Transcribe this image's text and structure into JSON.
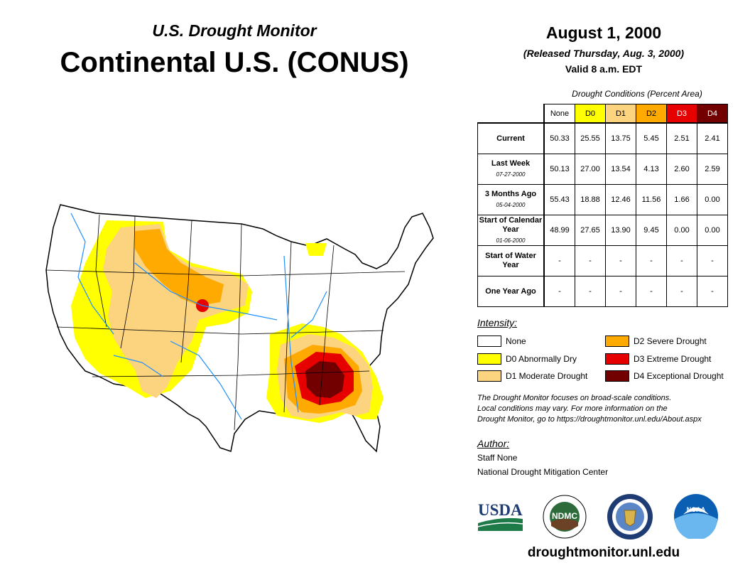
{
  "header": {
    "subtitle": "U.S. Drought Monitor",
    "title": "Continental U.S. (CONUS)",
    "date": "August 1, 2000",
    "released": "(Released Thursday, Aug. 3, 2000)",
    "valid": "Valid 8 a.m. EDT"
  },
  "conditions": {
    "caption": "Drought Conditions (Percent Area)",
    "columns": [
      {
        "label": "None",
        "color": "#ffffff"
      },
      {
        "label": "D0",
        "color": "#ffff00"
      },
      {
        "label": "D1",
        "color": "#fcd37f"
      },
      {
        "label": "D2",
        "color": "#ffaa00"
      },
      {
        "label": "D3",
        "color": "#e60000"
      },
      {
        "label": "D4",
        "color": "#730000"
      }
    ],
    "rows": [
      {
        "label": "Current",
        "date": "",
        "values": [
          "50.33",
          "25.55",
          "13.75",
          "5.45",
          "2.51",
          "2.41"
        ]
      },
      {
        "label": "Last Week",
        "date": "07-27-2000",
        "values": [
          "50.13",
          "27.00",
          "13.54",
          "4.13",
          "2.60",
          "2.59"
        ]
      },
      {
        "label": "3 Months Ago",
        "date": "05-04-2000",
        "values": [
          "55.43",
          "18.88",
          "12.46",
          "11.56",
          "1.66",
          "0.00"
        ]
      },
      {
        "label": "Start of Calendar Year",
        "date": "01-06-2000",
        "values": [
          "48.99",
          "27.65",
          "13.90",
          "9.45",
          "0.00",
          "0.00"
        ]
      },
      {
        "label": "Start of Water Year",
        "date": "",
        "values": [
          "-",
          "-",
          "-",
          "-",
          "-",
          "-"
        ]
      },
      {
        "label": "One Year Ago",
        "date": "",
        "values": [
          "-",
          "-",
          "-",
          "-",
          "-",
          "-"
        ]
      }
    ]
  },
  "legend": {
    "title": "Intensity:",
    "items": [
      {
        "label": "None",
        "color": "#ffffff"
      },
      {
        "label": "D0 Abnormally Dry",
        "color": "#ffff00"
      },
      {
        "label": "D1 Moderate Drought",
        "color": "#fcd37f"
      },
      {
        "label": "D2 Severe Drought",
        "color": "#ffaa00"
      },
      {
        "label": "D3 Extreme Drought",
        "color": "#e60000"
      },
      {
        "label": "D4 Exceptional Drought",
        "color": "#730000"
      }
    ]
  },
  "note": {
    "line1": "The Drought Monitor focuses on broad-scale conditions.",
    "line2": "Local conditions may vary. For more information on the",
    "line3": "Drought Monitor, go to https://droughtmonitor.unl.edu/About.aspx"
  },
  "author": {
    "title": "Author:",
    "name": "Staff None",
    "org": "National Drought Mitigation Center"
  },
  "logos": {
    "usda": "USDA",
    "ndmc": "NDMC",
    "noaa": "NOAA"
  },
  "footer": {
    "url": "droughtmonitor.unl.edu"
  }
}
